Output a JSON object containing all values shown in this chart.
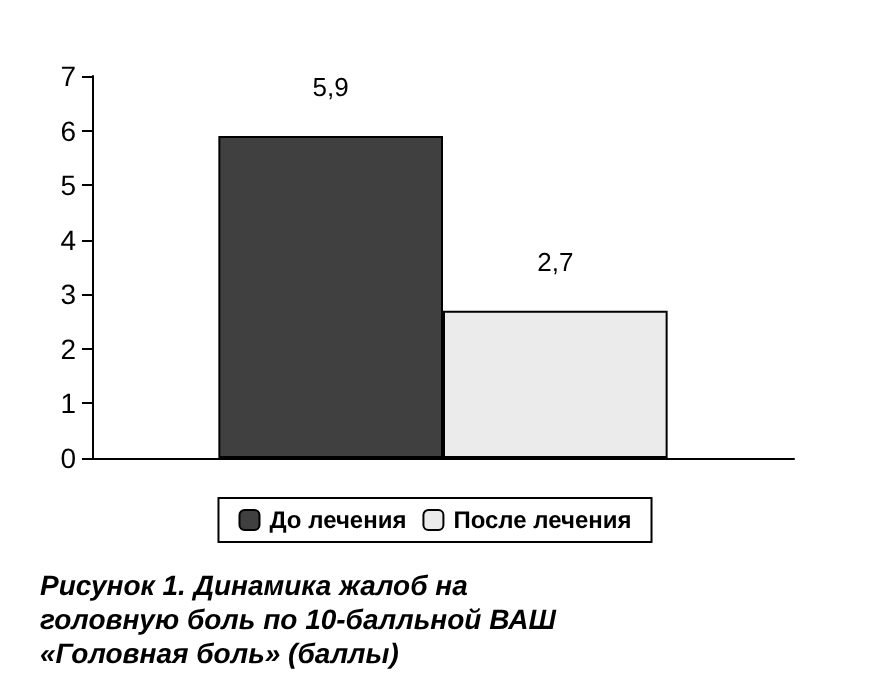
{
  "chart_data": {
    "type": "bar",
    "categories": [
      null
    ],
    "series": [
      {
        "name": "До лечения",
        "color": "#404040",
        "values": [
          5.9
        ],
        "value_labels": [
          "5,9"
        ]
      },
      {
        "name": "После лечения",
        "color": "#ebebeb",
        "values": [
          2.7
        ],
        "value_labels": [
          "2,7"
        ]
      }
    ],
    "ylim": [
      0,
      7
    ],
    "yticks": [
      0,
      1,
      2,
      3,
      4,
      5,
      6,
      7
    ],
    "grid": false,
    "legend": "bottom",
    "annotations": [
      "Рисунок 1. Динамика жалоб на головную боль по 10-балльной ВАШ «Головная боль» (баллы)"
    ]
  }
}
